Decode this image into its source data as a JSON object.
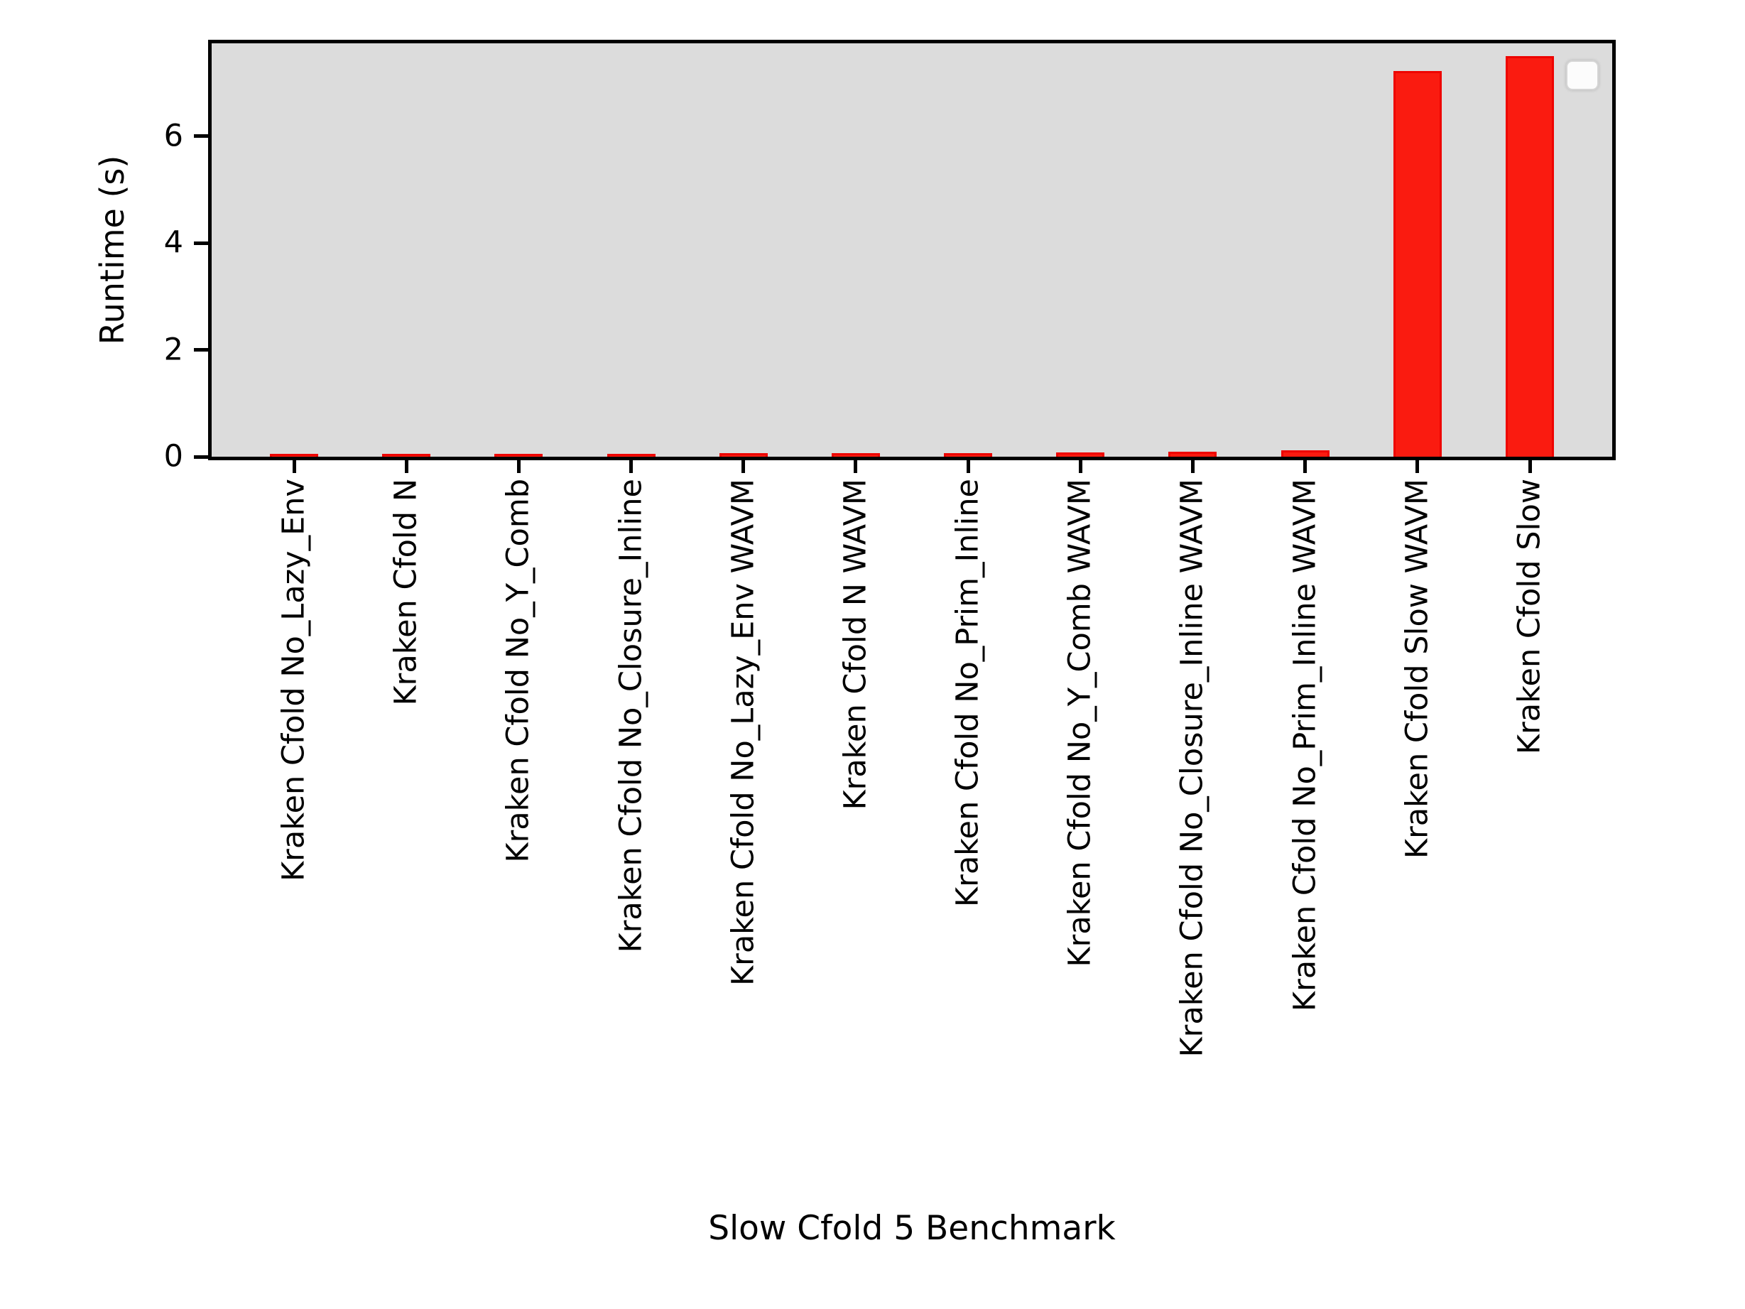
{
  "figure": {
    "background_color": "#ffffff",
    "plot_background_color": "#dcdcdc",
    "spine_color": "#000000"
  },
  "chart_data": {
    "type": "bar",
    "title": "",
    "xlabel": "Slow Cfold 5 Benchmark",
    "ylabel": "Runtime (s)",
    "categories": [
      "Kraken Cfold No_Lazy_Env",
      "Kraken Cfold N",
      "Kraken Cfold No_Y_Comb",
      "Kraken Cfold No_Closure_Inline",
      "Kraken Cfold No_Lazy_Env WAVM",
      "Kraken Cfold N WAVM",
      "Kraken Cfold No_Prim_Inline",
      "Kraken Cfold No_Y_Comb WAVM",
      "Kraken Cfold No_Closure_Inline WAVM",
      "Kraken Cfold No_Prim_Inline WAVM",
      "Kraken Cfold Slow WAVM",
      "Kraken Cfold Slow"
    ],
    "values": [
      0.06,
      0.06,
      0.05,
      0.06,
      0.07,
      0.07,
      0.07,
      0.08,
      0.09,
      0.12,
      7.22,
      7.5
    ],
    "bar_color": "#fa1b10",
    "bar_edge_color": "#ee0400",
    "yticks": [
      0,
      2,
      4,
      6
    ],
    "ylim": [
      0,
      7.74
    ],
    "grid": false,
    "legend": {
      "visible": true,
      "entries": [],
      "position": "upper right"
    }
  }
}
